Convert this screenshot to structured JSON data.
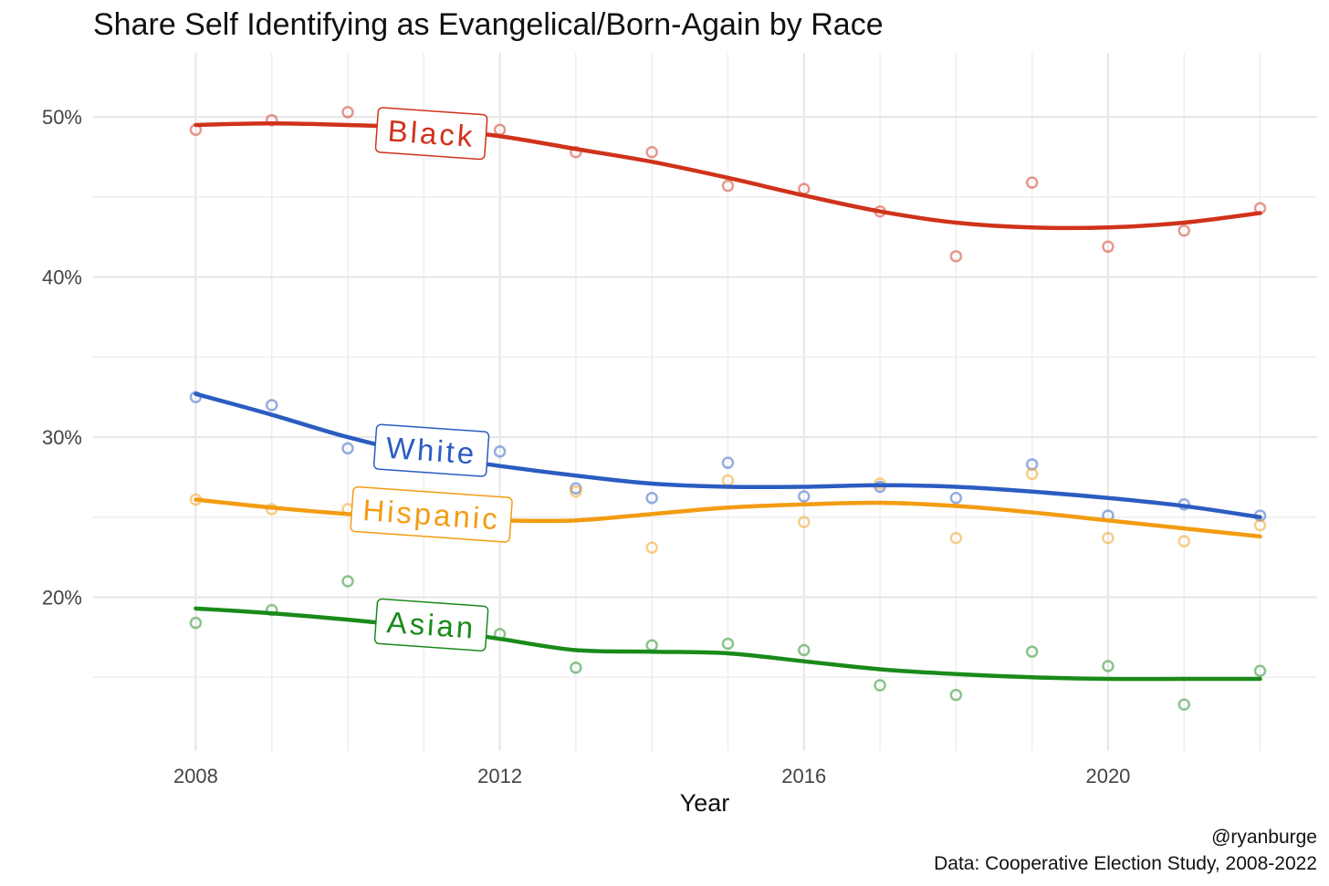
{
  "chart_data": {
    "type": "line",
    "title": "Share Self Identifying as Evangelical/Born-Again by Race",
    "xlabel": "Year",
    "ylabel": "",
    "x": [
      2008,
      2009,
      2010,
      2011,
      2012,
      2013,
      2014,
      2015,
      2016,
      2017,
      2018,
      2019,
      2020,
      2021,
      2022
    ],
    "xlim": [
      2006.65,
      2022.75
    ],
    "ylim": [
      10.4,
      54.0
    ],
    "xticks": [
      2008,
      2012,
      2016,
      2020
    ],
    "xtick_labels": [
      "2008",
      "2012",
      "2016",
      "2020"
    ],
    "yticks": [
      20,
      30,
      40,
      50
    ],
    "ytick_labels": [
      "20%",
      "30%",
      "40%",
      "50%"
    ],
    "grid": true,
    "legend": "direct labels on lines",
    "series": [
      {
        "name": "Black",
        "color": "#D0321A",
        "points": [
          49.2,
          49.8,
          50.3,
          null,
          49.2,
          47.8,
          47.8,
          45.7,
          45.5,
          44.1,
          41.3,
          45.9,
          41.9,
          42.9,
          44.3
        ],
        "trend": [
          49.5,
          49.6,
          49.5,
          49.3,
          48.8,
          48.0,
          47.2,
          46.2,
          45.1,
          44.1,
          43.4,
          43.1,
          43.1,
          43.4,
          44.0
        ]
      },
      {
        "name": "White",
        "color": "#2B5CC1",
        "points": [
          32.5,
          32.0,
          29.3,
          null,
          29.1,
          26.8,
          26.2,
          28.4,
          26.3,
          26.9,
          26.2,
          28.3,
          25.1,
          25.8,
          25.1
        ],
        "trend": [
          32.7,
          31.4,
          30.0,
          28.9,
          28.2,
          27.6,
          27.1,
          26.9,
          26.9,
          27.0,
          26.9,
          26.6,
          26.2,
          25.7,
          25.0
        ]
      },
      {
        "name": "Hispanic",
        "color": "#F39C12",
        "points": [
          26.1,
          25.5,
          25.5,
          null,
          null,
          26.6,
          23.1,
          27.3,
          24.7,
          27.1,
          23.7,
          27.7,
          23.7,
          23.5,
          24.5
        ],
        "trend": [
          26.1,
          25.6,
          25.2,
          24.9,
          24.8,
          24.8,
          25.2,
          25.6,
          25.8,
          25.9,
          25.7,
          25.3,
          24.8,
          24.3,
          23.8
        ]
      },
      {
        "name": "Asian",
        "color": "#1A8A1A",
        "points": [
          18.4,
          19.2,
          21.0,
          null,
          17.7,
          15.6,
          17.0,
          17.1,
          16.7,
          14.5,
          13.9,
          16.6,
          15.7,
          13.3,
          15.4
        ],
        "trend": [
          19.3,
          19.0,
          18.6,
          18.1,
          17.4,
          16.7,
          16.6,
          16.5,
          16.0,
          15.5,
          15.2,
          15.0,
          14.9,
          14.9,
          14.9
        ]
      }
    ],
    "annotations": [
      {
        "text": "Black",
        "series": "Black",
        "x": 2011.1,
        "y": 49.0
      },
      {
        "text": "White",
        "series": "White",
        "x": 2011.1,
        "y": 29.2
      },
      {
        "text": "Hispanic",
        "series": "Hispanic",
        "x": 2011.1,
        "y": 25.2
      },
      {
        "text": "Asian",
        "series": "Asian",
        "x": 2011.1,
        "y": 18.3
      }
    ],
    "caption_lines": [
      "@ryanburge",
      "Data: Cooperative Election Study, 2008-2022"
    ]
  }
}
